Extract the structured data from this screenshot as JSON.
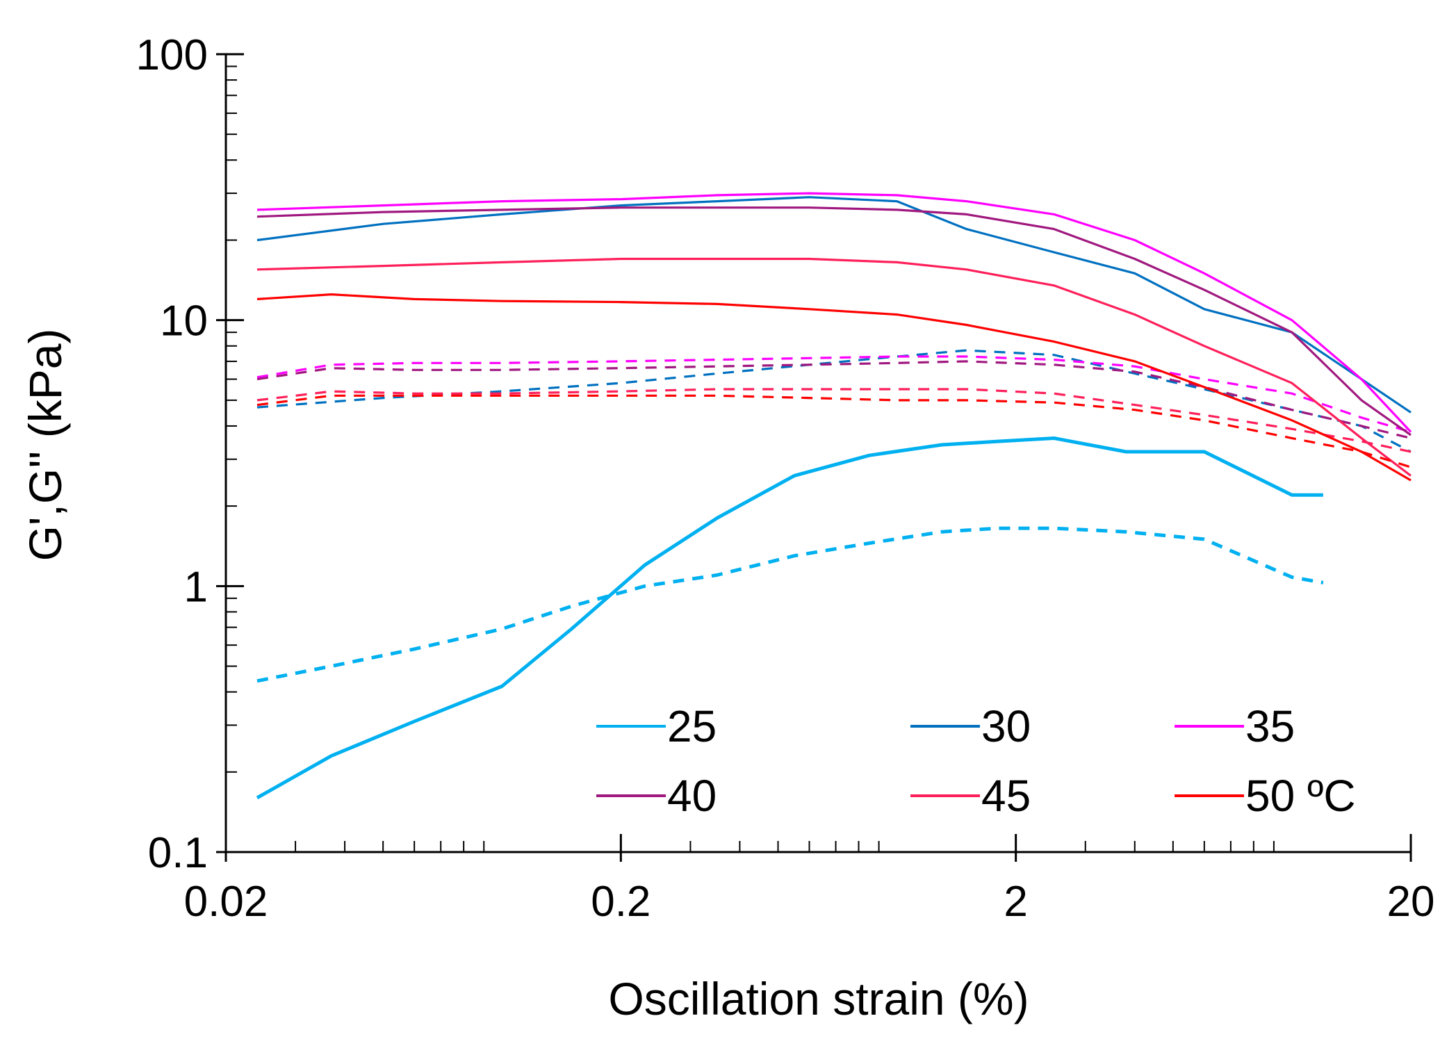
{
  "chart_data": {
    "type": "line",
    "xlabel": "Oscillation strain (%)",
    "ylabel": "G',G'' (kPa)",
    "xscale": "log",
    "yscale": "log",
    "xlim": [
      0.02,
      20
    ],
    "ylim": [
      0.1,
      100
    ],
    "x_ticks": [
      {
        "value": 0.02,
        "label": "0.02"
      },
      {
        "value": 0.2,
        "label": "0.2"
      },
      {
        "value": 2,
        "label": "2"
      },
      {
        "value": 20,
        "label": "20"
      }
    ],
    "y_ticks": [
      {
        "value": 0.1,
        "label": "0.1"
      },
      {
        "value": 1,
        "label": "1"
      },
      {
        "value": 10,
        "label": "10"
      },
      {
        "value": 100,
        "label": "100"
      }
    ],
    "grid": false,
    "legend_position": "bottom-right, inside plot, 3 columns",
    "series": [
      {
        "name": "25",
        "color": "#00b0f0",
        "dashed": false,
        "x": [
          0.024,
          0.037,
          0.06,
          0.1,
          0.15,
          0.23,
          0.35,
          0.55,
          0.85,
          1.3,
          1.8,
          2.5,
          3.8,
          6,
          10,
          12
        ],
        "y": [
          0.16,
          0.23,
          0.31,
          0.42,
          0.69,
          1.2,
          1.8,
          2.6,
          3.1,
          3.4,
          3.5,
          3.6,
          3.2,
          3.2,
          2.2,
          2.2
        ]
      },
      {
        "name": "25",
        "color": "#00b0f0",
        "dashed": true,
        "x": [
          0.024,
          0.037,
          0.06,
          0.1,
          0.15,
          0.23,
          0.35,
          0.55,
          0.85,
          1.3,
          1.8,
          2.5,
          3.8,
          6,
          10,
          12
        ],
        "y": [
          0.44,
          0.5,
          0.58,
          0.69,
          0.84,
          1,
          1.1,
          1.3,
          1.45,
          1.6,
          1.65,
          1.65,
          1.6,
          1.5,
          1.08,
          1.03
        ]
      },
      {
        "name": "30",
        "color": "#0070c0",
        "dashed": false,
        "x": [
          0.024,
          0.05,
          0.1,
          0.2,
          0.35,
          0.6,
          1,
          1.5,
          2.5,
          4,
          6,
          10,
          15,
          20
        ],
        "y": [
          20,
          23,
          25,
          27,
          28,
          29,
          28,
          22,
          18,
          15,
          11,
          9,
          6,
          4.5
        ]
      },
      {
        "name": "30",
        "color": "#0070c0",
        "dashed": true,
        "x": [
          0.024,
          0.05,
          0.1,
          0.2,
          0.35,
          0.6,
          1,
          1.5,
          2.5,
          4,
          6,
          10,
          15,
          20
        ],
        "y": [
          4.7,
          5.1,
          5.4,
          5.8,
          6.3,
          6.8,
          7.3,
          7.7,
          7.4,
          6.3,
          5.5,
          4.6,
          4,
          3.2
        ]
      },
      {
        "name": "35",
        "color": "#ff00ff",
        "dashed": false,
        "x": [
          0.024,
          0.05,
          0.1,
          0.2,
          0.35,
          0.6,
          1,
          1.5,
          2.5,
          4,
          6,
          10,
          15,
          20
        ],
        "y": [
          26,
          27,
          28,
          28.5,
          29.5,
          30,
          29.5,
          28,
          25,
          20,
          15,
          10,
          6,
          3.8
        ]
      },
      {
        "name": "35",
        "color": "#ff00ff",
        "dashed": true,
        "x": [
          0.024,
          0.037,
          0.06,
          0.1,
          0.2,
          0.35,
          0.6,
          1,
          1.5,
          2.5,
          4,
          6,
          10,
          15,
          20
        ],
        "y": [
          6.1,
          6.8,
          6.9,
          6.9,
          7,
          7.1,
          7.2,
          7.3,
          7.3,
          7.1,
          6.7,
          6,
          5.3,
          4.3,
          3.8
        ]
      },
      {
        "name": "40",
        "color": "#a0187f",
        "dashed": false,
        "x": [
          0.024,
          0.05,
          0.1,
          0.2,
          0.35,
          0.6,
          1,
          1.5,
          2.5,
          4,
          6,
          10,
          15,
          20
        ],
        "y": [
          24.5,
          25.5,
          26,
          26.5,
          26.5,
          26.5,
          26,
          25,
          22,
          17,
          13,
          9,
          5,
          3.7
        ]
      },
      {
        "name": "40",
        "color": "#a0187f",
        "dashed": true,
        "x": [
          0.024,
          0.037,
          0.06,
          0.1,
          0.2,
          0.35,
          0.6,
          1,
          1.5,
          2.5,
          4,
          6,
          10,
          15,
          20
        ],
        "y": [
          6,
          6.6,
          6.5,
          6.5,
          6.6,
          6.7,
          6.8,
          6.9,
          7,
          6.8,
          6.4,
          5.6,
          4.6,
          4,
          3.6
        ]
      },
      {
        "name": "45",
        "color": "#ff1f5a",
        "dashed": false,
        "x": [
          0.024,
          0.05,
          0.1,
          0.2,
          0.35,
          0.6,
          1,
          1.5,
          2.5,
          4,
          6,
          10,
          15,
          20
        ],
        "y": [
          15.5,
          16,
          16.5,
          17,
          17,
          17,
          16.5,
          15.5,
          13.5,
          10.5,
          8,
          5.8,
          3.6,
          2.6
        ]
      },
      {
        "name": "45",
        "color": "#ff1f5a",
        "dashed": true,
        "x": [
          0.024,
          0.037,
          0.06,
          0.1,
          0.2,
          0.35,
          0.6,
          1,
          1.5,
          2.5,
          4,
          6,
          10,
          15,
          20
        ],
        "y": [
          5,
          5.4,
          5.3,
          5.3,
          5.4,
          5.5,
          5.5,
          5.5,
          5.5,
          5.3,
          4.8,
          4.4,
          3.9,
          3.5,
          3.2
        ]
      },
      {
        "name": "50 ºC",
        "color": "#ff0000",
        "dashed": false,
        "x": [
          0.024,
          0.037,
          0.06,
          0.1,
          0.2,
          0.35,
          0.6,
          1,
          1.5,
          2.5,
          4,
          6,
          10,
          15,
          20
        ],
        "y": [
          12,
          12.5,
          12,
          11.8,
          11.7,
          11.5,
          11,
          10.5,
          9.6,
          8.3,
          7,
          5.6,
          4.2,
          3.2,
          2.5
        ]
      },
      {
        "name": "50 ºC",
        "color": "#ff0000",
        "dashed": true,
        "x": [
          0.024,
          0.037,
          0.06,
          0.1,
          0.2,
          0.35,
          0.6,
          1,
          1.5,
          2.5,
          4,
          6,
          10,
          15,
          20
        ],
        "y": [
          4.8,
          5.2,
          5.2,
          5.2,
          5.2,
          5.2,
          5.1,
          5,
          5,
          4.9,
          4.6,
          4.2,
          3.6,
          3.2,
          2.8
        ]
      }
    ],
    "legend": [
      {
        "label": "25",
        "color": "#00b0f0"
      },
      {
        "label": "30",
        "color": "#0070c0"
      },
      {
        "label": "35",
        "color": "#ff00ff"
      },
      {
        "label": "40",
        "color": "#a0187f"
      },
      {
        "label": "45",
        "color": "#ff1f5a"
      },
      {
        "label": "50 ºC",
        "color": "#ff0000"
      }
    ]
  }
}
